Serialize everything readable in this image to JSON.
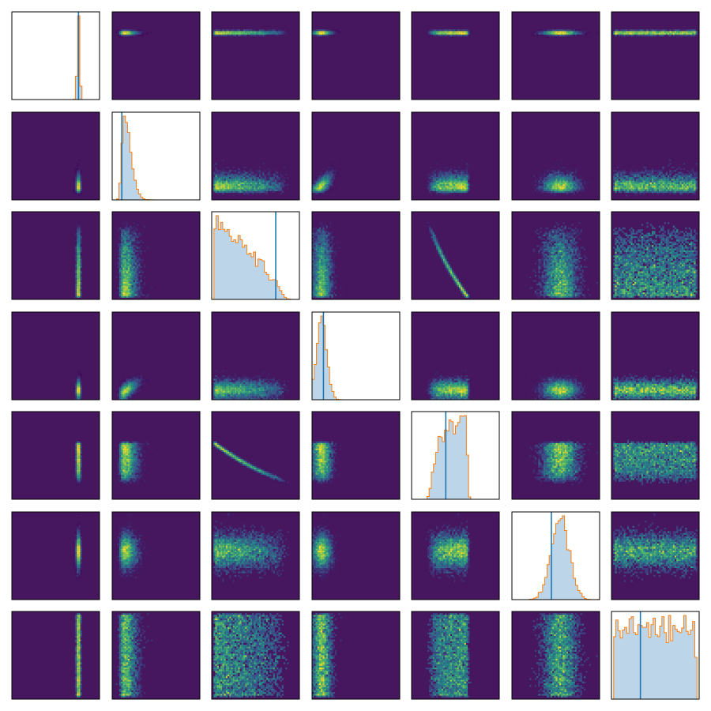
{
  "chart_data": {
    "type": "corner",
    "n_params": 7,
    "diag_type": "histogram",
    "offdiag_type": "heatmap",
    "colors": {
      "offdiag_background": "#46175f",
      "colormap": [
        "#440154",
        "#3b528b",
        "#21918c",
        "#5ec962",
        "#fde725"
      ],
      "hist_fill": "#bcd5e9",
      "hist_edge": "#ff7f0e",
      "truth_line": "#1f77b4",
      "frame": "#000000"
    },
    "axis_range": [
      0,
      1
    ],
    "ticks": "none",
    "grid": false,
    "legend": "none",
    "params": [
      {
        "index": 0,
        "mean": 0.76,
        "sd": 0.012,
        "dist": "gaussian",
        "truth": 0.76
      },
      {
        "index": 1,
        "mean": 0.17,
        "sd": 0.07,
        "dist": "skewed",
        "truth": 0.11
      },
      {
        "index": 2,
        "mean": 0.42,
        "sd": 0.26,
        "dist": "decreasing",
        "truth": 0.73
      },
      {
        "index": 3,
        "mean": 0.11,
        "sd": 0.06,
        "dist": "skewed",
        "truth": 0.13
      },
      {
        "index": 4,
        "mean": 0.43,
        "sd": 0.1,
        "dist": "plateau",
        "truth": 0.39
      },
      {
        "index": 5,
        "mean": 0.55,
        "sd": 0.1,
        "dist": "gaussian",
        "truth": 0.45
      },
      {
        "index": 6,
        "mean": 0.5,
        "sd": 0.27,
        "dist": "uniform",
        "truth": 0.33
      }
    ],
    "correlations": [
      {
        "pair": [
          2,
          4
        ],
        "shape": "curved",
        "value": -0.98
      },
      {
        "pair": [
          1,
          3
        ],
        "shape": "linear",
        "value": 0.7
      }
    ]
  }
}
